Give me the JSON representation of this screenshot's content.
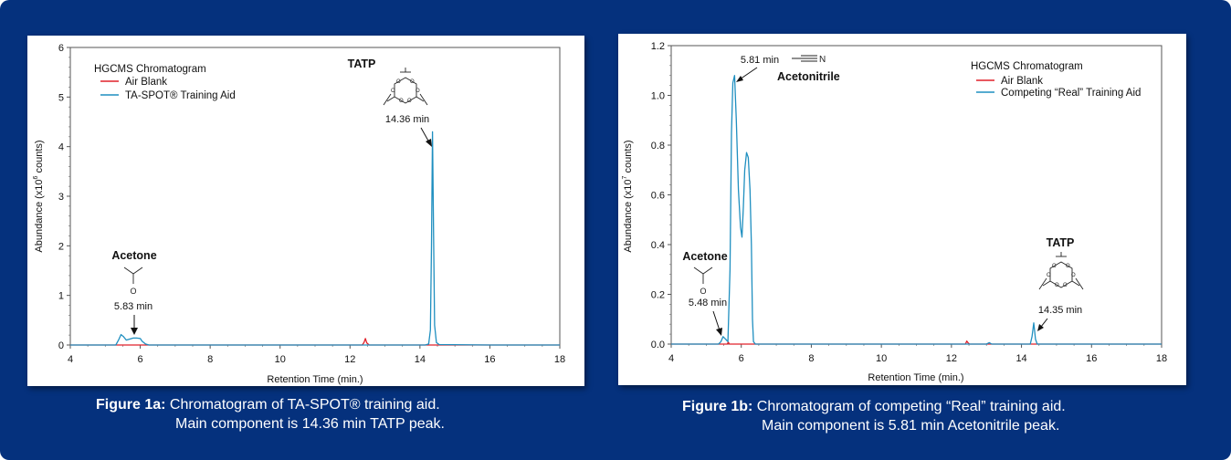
{
  "colors": {
    "background": "#05317d",
    "panel": "#ffffff",
    "air_blank": "#e0202a",
    "sample": "#1f8fc0",
    "text": "#111111"
  },
  "chart_data": [
    {
      "type": "line",
      "title": "HGCMS Chromatogram",
      "xlabel": "Retention Time (min.)",
      "ylabel": "Abundance (x10",
      "ylabel_exponent": "6",
      "ylabel_tail": " counts)",
      "xlim": [
        4,
        18
      ],
      "ylim": [
        0,
        6
      ],
      "xticks": [
        "4",
        "6",
        "8",
        "10",
        "12",
        "14",
        "16",
        "18"
      ],
      "yticks": [
        "0",
        "1",
        "2",
        "3",
        "4",
        "5",
        "6"
      ],
      "legend_position": "top-left",
      "series": [
        {
          "name": "Air Blank",
          "color": "#e0202a",
          "x": [
            4.0,
            12.35,
            12.4,
            12.44,
            12.48,
            12.55,
            18.0
          ],
          "y": [
            0.0,
            0.0,
            0.05,
            0.13,
            0.04,
            0.0,
            0.0
          ]
        },
        {
          "name": "TA-SPOT® Training Aid",
          "color": "#1f8fc0",
          "x": [
            4.0,
            5.3,
            5.38,
            5.45,
            5.52,
            5.6,
            5.7,
            5.8,
            5.9,
            6.0,
            6.05,
            6.15,
            6.25,
            14.15,
            14.25,
            14.3,
            14.33,
            14.36,
            14.39,
            14.42,
            14.47,
            14.55,
            16.0,
            18.0
          ],
          "y": [
            0.0,
            0.0,
            0.1,
            0.21,
            0.17,
            0.1,
            0.12,
            0.14,
            0.14,
            0.13,
            0.08,
            0.02,
            0.0,
            0.0,
            0.02,
            0.3,
            2.0,
            4.3,
            2.2,
            0.4,
            0.05,
            0.01,
            0.0,
            0.0
          ]
        }
      ],
      "annotations": [
        {
          "label": "TATP",
          "sub": "14.36 min",
          "x": 14.36,
          "y": 4.3
        },
        {
          "label": "Acetone",
          "sub": "5.83 min",
          "x": 5.83,
          "y": 0.17,
          "atom": "O"
        }
      ]
    },
    {
      "type": "line",
      "title": "HGCMS Chromatogram",
      "xlabel": "Retention Time (min.)",
      "ylabel": "Abundance (x10",
      "ylabel_exponent": "7",
      "ylabel_tail": " counts)",
      "xlim": [
        4,
        18
      ],
      "ylim": [
        0,
        1.2
      ],
      "xticks": [
        "4",
        "6",
        "8",
        "10",
        "12",
        "14",
        "16",
        "18"
      ],
      "yticks": [
        "0.0",
        "0.2",
        "0.4",
        "0.6",
        "0.8",
        "1.0",
        "1.2"
      ],
      "legend_position": "top-right",
      "series": [
        {
          "name": "Air Blank",
          "color": "#e0202a",
          "x": [
            4.0,
            5.6,
            5.63,
            5.66,
            5.7,
            12.4,
            12.44,
            12.48,
            12.52,
            18.0
          ],
          "y": [
            0.0,
            0.0,
            0.008,
            0.0,
            0.0,
            0.0,
            0.012,
            0.004,
            0.0,
            0.0
          ]
        },
        {
          "name": "Competing “Real” Training Aid",
          "color": "#1f8fc0",
          "x": [
            4.0,
            5.35,
            5.42,
            5.48,
            5.55,
            5.62,
            5.68,
            5.72,
            5.76,
            5.81,
            5.86,
            5.92,
            5.98,
            6.02,
            6.06,
            6.1,
            6.15,
            6.2,
            6.25,
            6.29,
            6.32,
            6.35,
            6.4,
            13.0,
            13.08,
            13.15,
            14.25,
            14.3,
            14.35,
            14.4,
            14.45,
            18.0
          ],
          "y": [
            0.0,
            0.0,
            0.01,
            0.03,
            0.02,
            0.01,
            0.3,
            0.85,
            1.05,
            1.08,
            0.9,
            0.62,
            0.47,
            0.43,
            0.55,
            0.7,
            0.77,
            0.75,
            0.62,
            0.4,
            0.1,
            0.01,
            0.0,
            0.0,
            0.006,
            0.0,
            0.0,
            0.03,
            0.085,
            0.02,
            0.0,
            0.0
          ]
        }
      ],
      "annotations": [
        {
          "label": "Acetonitrile",
          "sub": "5.81 min",
          "x": 5.81,
          "y": 1.08,
          "atom": "N"
        },
        {
          "label": "TATP",
          "sub": "14.35 min",
          "x": 14.35,
          "y": 0.085
        },
        {
          "label": "Acetone",
          "sub": "5.48 min",
          "x": 5.48,
          "y": 0.03,
          "atom": "O"
        }
      ]
    }
  ],
  "captions": [
    {
      "label": "Figure 1a:",
      "line1": " Chromatogram of TA-SPOT® training aid.",
      "line2": "Main component is 14.36 min TATP peak."
    },
    {
      "label": "Figure 1b:",
      "line1": " Chromatogram of competing “Real” training aid.",
      "line2": "Main component is 5.81 min Acetonitrile peak."
    }
  ]
}
